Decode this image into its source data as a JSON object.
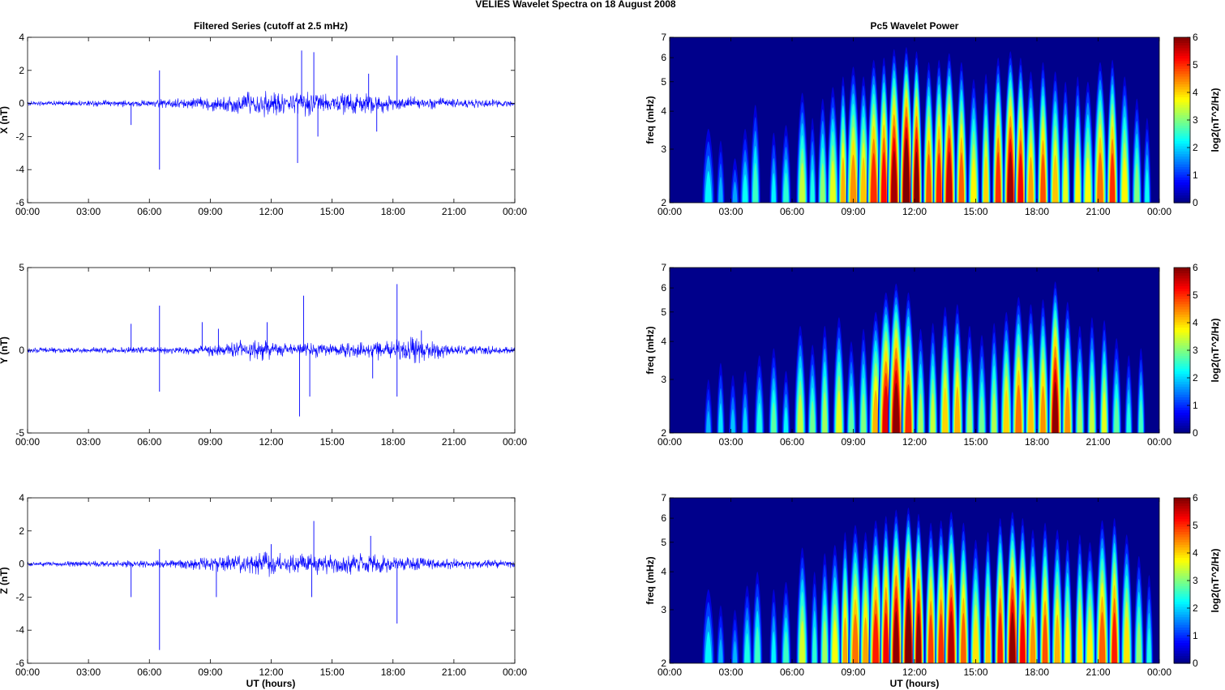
{
  "figure": {
    "suptitle": "VELIES Wavelet Spectra on 18 August    2008",
    "left_title": "Filtered Series (cutoff at 2.5 mHz)",
    "right_title": "Pc5 Wavelet Power",
    "xlabel": "UT (hours)"
  },
  "colors": {
    "trace": "#0000ff",
    "background": "#00008b"
  },
  "chart_data": [
    {
      "type": "line",
      "ylabel": "X (nT)",
      "x_ticks": [
        "00:00",
        "03:00",
        "06:00",
        "09:00",
        "12:00",
        "15:00",
        "18:00",
        "21:00",
        "00:00"
      ],
      "x_range_hours": [
        0,
        24
      ],
      "y_ticks": [
        "4",
        "2",
        "0",
        "-2",
        "-4",
        "-6"
      ],
      "y_tick_values": [
        4,
        2,
        0,
        -2,
        -4,
        -6
      ],
      "ylim": [
        -6,
        4
      ],
      "series": [
        {
          "x": [
            0,
            24
          ],
          "y": [
            0,
            0
          ]
        }
      ],
      "envelope": {
        "hours": [
          0,
          3,
          6,
          8,
          10,
          11,
          12,
          13,
          14,
          15,
          16,
          17,
          18,
          20,
          22,
          24
        ],
        "amplitude": [
          0.15,
          0.2,
          0.25,
          0.35,
          0.6,
          0.9,
          0.8,
          0.7,
          0.9,
          0.6,
          0.8,
          0.7,
          0.5,
          0.4,
          0.3,
          0.25
        ]
      },
      "spikes": [
        {
          "x": 6.5,
          "y": 2.0
        },
        {
          "x": 6.5,
          "y": -4.0
        },
        {
          "x": 5.1,
          "y": -1.3
        },
        {
          "x": 13.5,
          "y": 3.2
        },
        {
          "x": 13.3,
          "y": -3.6
        },
        {
          "x": 14.1,
          "y": 3.1
        },
        {
          "x": 14.3,
          "y": -2.0
        },
        {
          "x": 16.8,
          "y": 1.8
        },
        {
          "x": 17.2,
          "y": -1.7
        },
        {
          "x": 18.2,
          "y": 2.9
        }
      ]
    },
    {
      "type": "line",
      "ylabel": "Y (nT)",
      "x_ticks": [
        "00:00",
        "03:00",
        "06:00",
        "09:00",
        "12:00",
        "15:00",
        "18:00",
        "21:00",
        "00:00"
      ],
      "x_range_hours": [
        0,
        24
      ],
      "y_ticks": [
        "5",
        "0",
        "-5"
      ],
      "y_tick_values": [
        5,
        0,
        -5
      ],
      "ylim": [
        -5,
        5
      ],
      "series": [
        {
          "x": [
            0,
            24
          ],
          "y": [
            0,
            0
          ]
        }
      ],
      "envelope": {
        "hours": [
          0,
          3,
          6,
          8,
          10,
          11,
          12,
          13,
          14,
          15,
          16,
          17,
          18,
          19,
          20,
          22,
          24
        ],
        "amplitude": [
          0.2,
          0.2,
          0.25,
          0.3,
          0.5,
          0.8,
          0.6,
          0.4,
          0.5,
          0.4,
          0.5,
          0.6,
          0.7,
          0.9,
          0.6,
          0.3,
          0.25
        ]
      },
      "spikes": [
        {
          "x": 5.1,
          "y": 1.6
        },
        {
          "x": 6.5,
          "y": 2.7
        },
        {
          "x": 6.5,
          "y": -2.5
        },
        {
          "x": 8.6,
          "y": 1.7
        },
        {
          "x": 9.4,
          "y": 1.3
        },
        {
          "x": 11.8,
          "y": 1.7
        },
        {
          "x": 13.4,
          "y": -4.0
        },
        {
          "x": 13.6,
          "y": 3.3
        },
        {
          "x": 13.9,
          "y": -2.8
        },
        {
          "x": 17.0,
          "y": -1.7
        },
        {
          "x": 18.2,
          "y": 4.0
        },
        {
          "x": 18.2,
          "y": -2.8
        },
        {
          "x": 19.4,
          "y": 1.2
        }
      ]
    },
    {
      "type": "line",
      "ylabel": "Z (nT)",
      "x_ticks": [
        "00:00",
        "03:00",
        "06:00",
        "09:00",
        "12:00",
        "15:00",
        "18:00",
        "21:00",
        "00:00"
      ],
      "x_range_hours": [
        0,
        24
      ],
      "y_ticks": [
        "4",
        "2",
        "0",
        "-2",
        "-4",
        "-6"
      ],
      "y_tick_values": [
        4,
        2,
        0,
        -2,
        -4,
        -6
      ],
      "ylim": [
        -6,
        4
      ],
      "series": [
        {
          "x": [
            0,
            24
          ],
          "y": [
            0,
            0
          ]
        }
      ],
      "envelope": {
        "hours": [
          0,
          3,
          6,
          8,
          10,
          11,
          12,
          13,
          14,
          15,
          16,
          17,
          18,
          20,
          22,
          24
        ],
        "amplitude": [
          0.15,
          0.2,
          0.25,
          0.35,
          0.6,
          0.8,
          0.8,
          0.6,
          0.8,
          0.6,
          0.7,
          0.7,
          0.5,
          0.4,
          0.3,
          0.25
        ]
      },
      "spikes": [
        {
          "x": 5.1,
          "y": -2.0
        },
        {
          "x": 6.5,
          "y": -5.2
        },
        {
          "x": 6.5,
          "y": 0.9
        },
        {
          "x": 9.3,
          "y": -2.0
        },
        {
          "x": 12.0,
          "y": 1.2
        },
        {
          "x": 14.1,
          "y": 2.6
        },
        {
          "x": 14.0,
          "y": -2.0
        },
        {
          "x": 16.9,
          "y": 1.7
        },
        {
          "x": 18.2,
          "y": -3.6
        }
      ]
    },
    {
      "type": "heatmap",
      "title": "Pc5 Wavelet Power",
      "ylabel": "freq (mHz)",
      "colorbar_label": "log2(nT^2/Hz)",
      "colorbar_ticks": [
        "6",
        "5",
        "4",
        "3",
        "2",
        "1",
        "0"
      ],
      "clim": [
        0,
        6
      ],
      "y_ticks": [
        "7",
        "6",
        "5",
        "4",
        "3",
        "2"
      ],
      "y_tick_values": [
        7,
        6,
        5,
        4,
        3,
        2
      ],
      "ylim": [
        2,
        7
      ],
      "y_scale": "log",
      "x_ticks": [
        "00:00",
        "03:00",
        "06:00",
        "09:00",
        "12:00",
        "15:00",
        "18:00",
        "21:00",
        "00:00"
      ],
      "x_range_hours": [
        0,
        24
      ],
      "blobs": [
        [
          1.9,
          3.5,
          0.3,
          2.2
        ],
        [
          2.5,
          3.2,
          0.2,
          1.8
        ],
        [
          3.2,
          2.8,
          0.2,
          1.7
        ],
        [
          3.7,
          3.5,
          0.25,
          2.3
        ],
        [
          4.2,
          4.2,
          0.25,
          2.6
        ],
        [
          5.1,
          3.4,
          0.2,
          2.2
        ],
        [
          5.7,
          3.6,
          0.25,
          2.5
        ],
        [
          6.5,
          4.6,
          0.3,
          3.4
        ],
        [
          7.0,
          3.8,
          0.2,
          2.4
        ],
        [
          7.5,
          4.4,
          0.25,
          3.1
        ],
        [
          8.0,
          4.8,
          0.3,
          3.6
        ],
        [
          8.5,
          5.2,
          0.25,
          4.2
        ],
        [
          9.0,
          5.6,
          0.35,
          4.4
        ],
        [
          9.5,
          5.2,
          0.3,
          4.1
        ],
        [
          10.0,
          5.9,
          0.35,
          5.0
        ],
        [
          10.5,
          6.0,
          0.3,
          5.2
        ],
        [
          11.0,
          6.4,
          0.35,
          5.8
        ],
        [
          11.6,
          6.5,
          0.35,
          6.5
        ],
        [
          12.1,
          6.3,
          0.3,
          6.0
        ],
        [
          12.7,
          5.8,
          0.3,
          4.8
        ],
        [
          13.2,
          5.9,
          0.3,
          5.1
        ],
        [
          13.7,
          6.2,
          0.35,
          5.6
        ],
        [
          14.3,
          5.8,
          0.3,
          4.7
        ],
        [
          14.9,
          5.1,
          0.3,
          3.8
        ],
        [
          15.5,
          5.3,
          0.25,
          4.0
        ],
        [
          16.1,
          6.0,
          0.3,
          5.0
        ],
        [
          16.7,
          6.3,
          0.35,
          5.8
        ],
        [
          17.2,
          6.0,
          0.3,
          5.3
        ],
        [
          17.7,
          5.4,
          0.3,
          4.3
        ],
        [
          18.3,
          5.8,
          0.3,
          4.8
        ],
        [
          18.9,
          5.4,
          0.3,
          4.1
        ],
        [
          19.4,
          5.0,
          0.25,
          3.6
        ],
        [
          20.0,
          5.2,
          0.25,
          3.8
        ],
        [
          20.5,
          5.0,
          0.3,
          3.7
        ],
        [
          21.1,
          5.8,
          0.35,
          4.6
        ],
        [
          21.7,
          5.9,
          0.3,
          5.0
        ],
        [
          22.3,
          5.2,
          0.3,
          3.8
        ],
        [
          22.9,
          4.4,
          0.25,
          3.0
        ],
        [
          23.4,
          3.8,
          0.2,
          2.3
        ]
      ]
    },
    {
      "type": "heatmap",
      "title": "",
      "ylabel": "freq (mHz)",
      "colorbar_label": "log2(nT^2/Hz)",
      "colorbar_ticks": [
        "6",
        "5",
        "4",
        "3",
        "2",
        "1",
        "0"
      ],
      "clim": [
        0,
        6
      ],
      "y_ticks": [
        "7",
        "6",
        "5",
        "4",
        "3",
        "2"
      ],
      "y_tick_values": [
        7,
        6,
        5,
        4,
        3,
        2
      ],
      "ylim": [
        2,
        7
      ],
      "y_scale": "log",
      "x_ticks": [
        "00:00",
        "03:00",
        "06:00",
        "09:00",
        "12:00",
        "15:00",
        "18:00",
        "21:00",
        "00:00"
      ],
      "x_range_hours": [
        0,
        24
      ],
      "blobs": [
        [
          1.9,
          3.0,
          0.2,
          1.8
        ],
        [
          2.5,
          3.4,
          0.2,
          2.1
        ],
        [
          3.1,
          3.1,
          0.2,
          1.9
        ],
        [
          3.7,
          3.2,
          0.2,
          2.0
        ],
        [
          4.4,
          3.6,
          0.25,
          2.4
        ],
        [
          5.1,
          3.8,
          0.25,
          2.8
        ],
        [
          5.7,
          3.2,
          0.2,
          2.2
        ],
        [
          6.4,
          4.5,
          0.3,
          3.4
        ],
        [
          7.0,
          3.9,
          0.25,
          2.9
        ],
        [
          7.6,
          4.5,
          0.25,
          3.2
        ],
        [
          8.3,
          4.8,
          0.3,
          3.6
        ],
        [
          8.9,
          4.0,
          0.25,
          2.8
        ],
        [
          9.5,
          4.4,
          0.25,
          3.0
        ],
        [
          10.1,
          5.0,
          0.35,
          4.2
        ],
        [
          10.6,
          5.8,
          0.4,
          5.4
        ],
        [
          11.1,
          6.2,
          0.4,
          5.9
        ],
        [
          11.7,
          5.8,
          0.35,
          5.0
        ],
        [
          12.3,
          4.4,
          0.25,
          3.2
        ],
        [
          12.9,
          4.6,
          0.25,
          3.4
        ],
        [
          13.5,
          5.2,
          0.3,
          4.0
        ],
        [
          14.1,
          5.3,
          0.3,
          4.2
        ],
        [
          14.7,
          4.5,
          0.25,
          3.2
        ],
        [
          15.3,
          4.2,
          0.25,
          2.9
        ],
        [
          15.9,
          4.6,
          0.25,
          3.3
        ],
        [
          16.5,
          5.0,
          0.3,
          4.0
        ],
        [
          17.1,
          5.6,
          0.35,
          4.6
        ],
        [
          17.7,
          5.3,
          0.3,
          4.1
        ],
        [
          18.3,
          5.5,
          0.3,
          4.4
        ],
        [
          18.9,
          6.3,
          0.35,
          5.9
        ],
        [
          19.5,
          5.4,
          0.3,
          4.4
        ],
        [
          20.1,
          4.5,
          0.25,
          3.2
        ],
        [
          20.7,
          4.8,
          0.25,
          3.4
        ],
        [
          21.3,
          4.7,
          0.25,
          3.6
        ],
        [
          21.9,
          4.1,
          0.25,
          2.8
        ],
        [
          22.5,
          3.6,
          0.2,
          2.4
        ],
        [
          23.1,
          3.8,
          0.2,
          2.6
        ]
      ]
    },
    {
      "type": "heatmap",
      "title": "",
      "ylabel": "freq (mHz)",
      "colorbar_label": "log2(nT^2/Hz)",
      "colorbar_ticks": [
        "6",
        "5",
        "4",
        "3",
        "2",
        "1",
        "0"
      ],
      "clim": [
        0,
        6
      ],
      "y_ticks": [
        "7",
        "6",
        "5",
        "4",
        "3",
        "2"
      ],
      "y_tick_values": [
        7,
        6,
        5,
        4,
        3,
        2
      ],
      "ylim": [
        2,
        7
      ],
      "y_scale": "log",
      "x_ticks": [
        "00:00",
        "03:00",
        "06:00",
        "09:00",
        "12:00",
        "15:00",
        "18:00",
        "21:00",
        "00:00"
      ],
      "x_range_hours": [
        0,
        24
      ],
      "blobs": [
        [
          1.9,
          3.5,
          0.3,
          2.2
        ],
        [
          2.5,
          3.1,
          0.2,
          1.8
        ],
        [
          3.2,
          3.0,
          0.2,
          1.8
        ],
        [
          3.8,
          3.6,
          0.25,
          2.4
        ],
        [
          4.3,
          4.0,
          0.25,
          2.6
        ],
        [
          5.1,
          3.5,
          0.2,
          2.2
        ],
        [
          5.7,
          3.7,
          0.25,
          2.6
        ],
        [
          6.5,
          4.8,
          0.3,
          3.5
        ],
        [
          7.1,
          4.0,
          0.2,
          2.5
        ],
        [
          7.6,
          4.6,
          0.25,
          3.2
        ],
        [
          8.1,
          4.9,
          0.3,
          3.7
        ],
        [
          8.6,
          5.4,
          0.25,
          4.3
        ],
        [
          9.1,
          5.7,
          0.35,
          4.6
        ],
        [
          9.6,
          5.4,
          0.3,
          4.3
        ],
        [
          10.1,
          5.9,
          0.35,
          5.1
        ],
        [
          10.6,
          6.1,
          0.3,
          5.3
        ],
        [
          11.1,
          6.4,
          0.35,
          5.9
        ],
        [
          11.7,
          6.5,
          0.35,
          6.5
        ],
        [
          12.2,
          6.2,
          0.3,
          5.9
        ],
        [
          12.8,
          5.8,
          0.3,
          4.9
        ],
        [
          13.3,
          5.9,
          0.3,
          5.0
        ],
        [
          13.8,
          6.3,
          0.35,
          5.7
        ],
        [
          14.4,
          5.8,
          0.3,
          4.7
        ],
        [
          15.0,
          5.1,
          0.3,
          3.9
        ],
        [
          15.6,
          5.4,
          0.25,
          4.1
        ],
        [
          16.2,
          6.0,
          0.3,
          5.1
        ],
        [
          16.8,
          6.3,
          0.35,
          5.9
        ],
        [
          17.3,
          6.0,
          0.3,
          5.3
        ],
        [
          17.8,
          5.5,
          0.3,
          4.4
        ],
        [
          18.4,
          5.8,
          0.3,
          4.8
        ],
        [
          19.0,
          5.5,
          0.3,
          4.2
        ],
        [
          19.5,
          5.1,
          0.25,
          3.7
        ],
        [
          20.1,
          5.3,
          0.25,
          3.9
        ],
        [
          20.6,
          5.0,
          0.3,
          3.8
        ],
        [
          21.2,
          5.9,
          0.35,
          4.7
        ],
        [
          21.8,
          6.0,
          0.3,
          5.1
        ],
        [
          22.4,
          5.3,
          0.3,
          3.9
        ],
        [
          23.0,
          4.5,
          0.25,
          3.1
        ],
        [
          23.5,
          3.9,
          0.2,
          2.4
        ]
      ]
    }
  ]
}
